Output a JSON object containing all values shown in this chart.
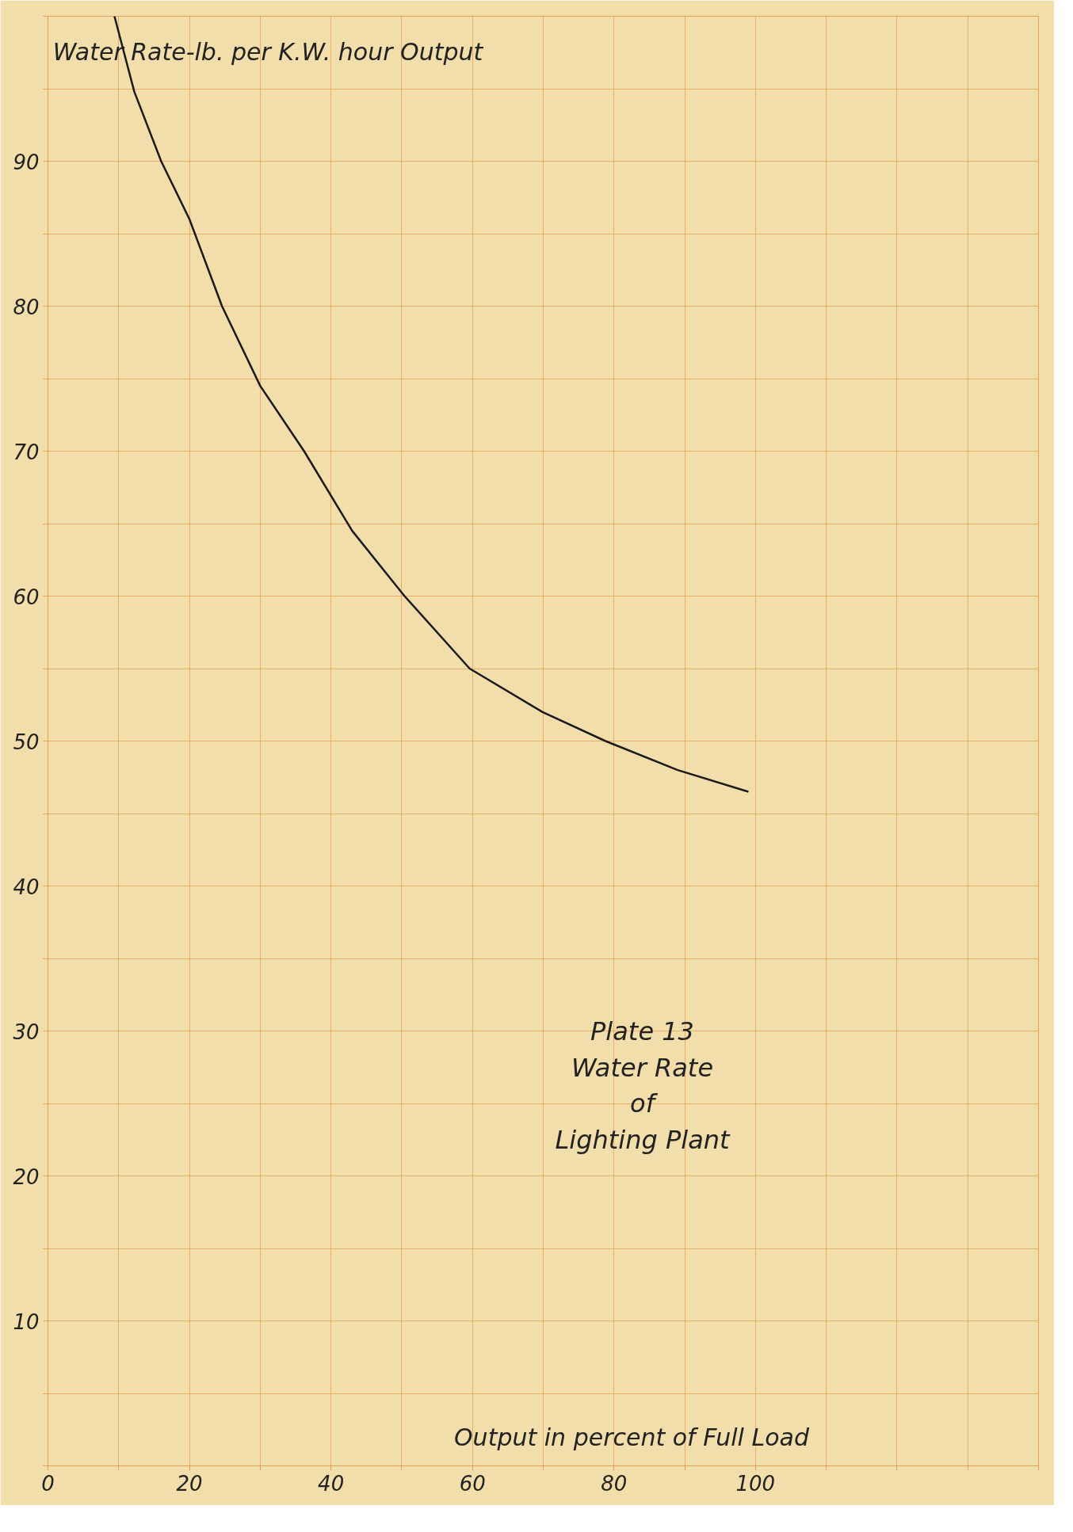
{
  "chart_data": {
    "type": "line",
    "title": "Plate 13\nWater Rate\nof\nLighting Plant",
    "xlabel": "Output in percent of Full Load",
    "ylabel": "Water Rate-lb. per K.W. hour Output",
    "x": [
      9.4,
      12.2,
      16,
      20,
      24.6,
      30,
      36.2,
      43,
      50.4,
      59.6,
      69.9,
      78.8,
      89,
      99
    ],
    "series": [
      {
        "color": "#1a1a1a",
        "values": [
          100,
          94.8,
          90,
          86,
          80,
          74.5,
          70,
          64.5,
          60,
          55,
          52,
          50,
          48,
          46.5
        ]
      }
    ],
    "xlim": [
      0,
      140
    ],
    "ylim": [
      0,
      100
    ],
    "xticks": [
      0,
      {
        "value": 10,
        "label": null
      },
      20,
      {
        "value": 30,
        "label": null
      },
      40,
      {
        "value": 50,
        "label": null
      },
      60,
      {
        "value": 70,
        "label": null
      },
      80,
      {
        "value": 90,
        "label": null
      },
      100,
      {
        "value": 110,
        "label": null
      },
      {
        "value": 120,
        "label": null
      },
      {
        "value": 130,
        "label": null
      },
      {
        "value": 140,
        "label": null
      }
    ],
    "yticks": [
      {
        "value": 0,
        "label": null
      },
      {
        "value": 5,
        "label": null
      },
      10,
      {
        "value": 15,
        "label": null
      },
      20,
      {
        "value": 25,
        "label": null
      },
      30,
      {
        "value": 35,
        "label": null
      },
      40,
      {
        "value": 45,
        "label": null
      },
      50,
      {
        "value": 55,
        "label": null
      },
      60,
      {
        "value": 65,
        "label": null
      },
      70,
      {
        "value": 75,
        "label": null
      },
      80,
      {
        "value": 85,
        "label": null
      },
      90,
      {
        "value": 95,
        "label": null
      },
      {
        "value": 100,
        "label": null
      }
    ],
    "grid": true,
    "line_style": "solid",
    "marker": "none"
  }
}
